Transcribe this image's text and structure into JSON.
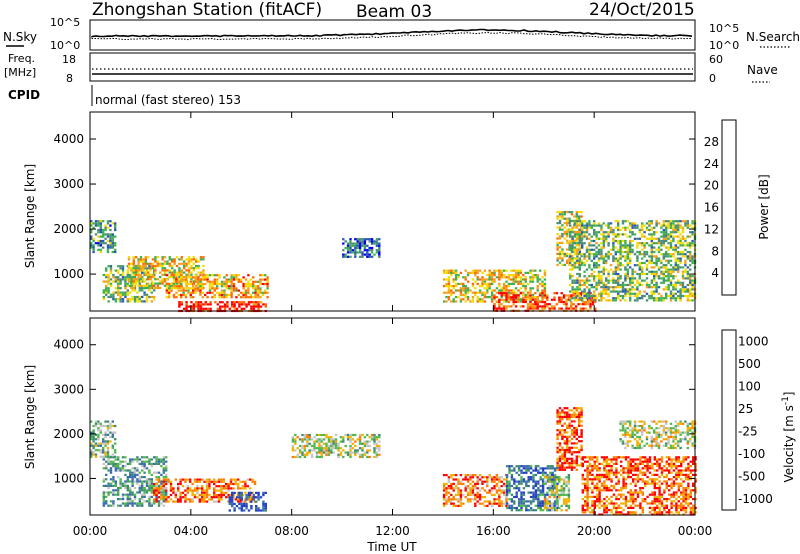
{
  "header": {
    "station": "Zhongshan Station (fitACF)",
    "beam": "Beam 03",
    "date": "24/Oct/2015"
  },
  "summary_panels": {
    "nsky_label": "N.Sky",
    "nsky_ticks": [
      "10^5",
      "10^0"
    ],
    "nsearch_label": "N.Search",
    "nsearch_ticks": [
      "10^5",
      "10^0"
    ],
    "freq_label_top": "Freq.",
    "freq_label_unit": "[MHz]",
    "freq_ticks": [
      "18",
      "8"
    ],
    "nave_label": "Nave",
    "nave_ticks": [
      "60",
      "0"
    ],
    "cpid_label": "CPID",
    "cpid_text": "normal (fast stereo) 153"
  },
  "chart_data": [
    {
      "type": "heatmap",
      "title": "",
      "parameter": "Power",
      "ylabel": "Slant Range [km]",
      "ylim": [
        180,
        4600
      ],
      "yticks": [
        "1000",
        "2000",
        "3000",
        "4000"
      ],
      "xlim_hours": [
        0,
        24
      ],
      "colorbar": {
        "label": "Power [dB]",
        "range": [
          0,
          32
        ],
        "ticks": [
          "4",
          "8",
          "12",
          "16",
          "20",
          "24",
          "28"
        ],
        "colors": [
          "#0000ee",
          "#2a58b4",
          "#4a8a78",
          "#3cb050",
          "#f5dc00",
          "#f2a01a",
          "#ff6a00",
          "#ff0000"
        ]
      },
      "echo_regions": [
        {
          "t": [
            0.0,
            1.0
          ],
          "r": [
            1500,
            2200
          ],
          "level": 0.32
        },
        {
          "t": [
            0.5,
            2.5
          ],
          "r": [
            400,
            1200
          ],
          "level": 0.45
        },
        {
          "t": [
            1.5,
            4.5
          ],
          "r": [
            700,
            1400
          ],
          "level": 0.62
        },
        {
          "t": [
            3.0,
            7.0
          ],
          "r": [
            500,
            1000
          ],
          "level": 0.68
        },
        {
          "t": [
            3.5,
            7.0
          ],
          "r": [
            200,
            400
          ],
          "level": 0.95
        },
        {
          "t": [
            10.0,
            11.5
          ],
          "r": [
            1400,
            1800
          ],
          "level": 0.25
        },
        {
          "t": [
            14.0,
            18.0
          ],
          "r": [
            400,
            1100
          ],
          "level": 0.62
        },
        {
          "t": [
            16.0,
            20.0
          ],
          "r": [
            200,
            600
          ],
          "level": 0.85
        },
        {
          "t": [
            18.5,
            19.5
          ],
          "r": [
            1200,
            2400
          ],
          "level": 0.55
        },
        {
          "t": [
            19.0,
            24.0
          ],
          "r": [
            400,
            2200
          ],
          "level": 0.45
        }
      ]
    },
    {
      "type": "heatmap",
      "title": "",
      "parameter": "Velocity",
      "ylabel": "Slant Range [km]",
      "ylim": [
        180,
        4600
      ],
      "yticks": [
        "1000",
        "2000",
        "3000",
        "4000"
      ],
      "xlim_hours": [
        0,
        24
      ],
      "xticks": [
        "00:00",
        "04:00",
        "08:00",
        "12:00",
        "16:00",
        "20:00",
        "00:00"
      ],
      "xlabel": "Time UT",
      "colorbar": {
        "label": "Velocity [m s^-1]",
        "ticks": [
          "1000",
          "500",
          "100",
          "25",
          "-25",
          "-100",
          "-500",
          "-1000"
        ],
        "colors": [
          "#2040c0",
          "#3a6ab0",
          "#3d8a70",
          "#4fb84a",
          "#c4c4c4",
          "#f0b000",
          "#ff7a00",
          "#ff0000"
        ]
      },
      "echo_regions": [
        {
          "t": [
            0.0,
            1.0
          ],
          "r": [
            1500,
            2300
          ],
          "level": 0.45
        },
        {
          "t": [
            0.5,
            3.0
          ],
          "r": [
            400,
            1500
          ],
          "level": 0.35
        },
        {
          "t": [
            2.5,
            6.5
          ],
          "r": [
            500,
            1000
          ],
          "level": 0.82
        },
        {
          "t": [
            5.5,
            7.0
          ],
          "r": [
            300,
            700
          ],
          "level": 0.08
        },
        {
          "t": [
            8.0,
            11.5
          ],
          "r": [
            1500,
            2000
          ],
          "level": 0.55
        },
        {
          "t": [
            14.0,
            16.5
          ],
          "r": [
            400,
            1100
          ],
          "level": 0.8
        },
        {
          "t": [
            16.5,
            18.5
          ],
          "r": [
            300,
            1300
          ],
          "level": 0.2
        },
        {
          "t": [
            18.0,
            19.0
          ],
          "r": [
            300,
            1100
          ],
          "level": 0.55
        },
        {
          "t": [
            18.5,
            19.5
          ],
          "r": [
            1200,
            2600
          ],
          "level": 0.88
        },
        {
          "t": [
            19.5,
            24.0
          ],
          "r": [
            200,
            1500
          ],
          "level": 0.85
        },
        {
          "t": [
            21.0,
            24.0
          ],
          "r": [
            1700,
            2300
          ],
          "level": 0.55
        }
      ]
    }
  ]
}
